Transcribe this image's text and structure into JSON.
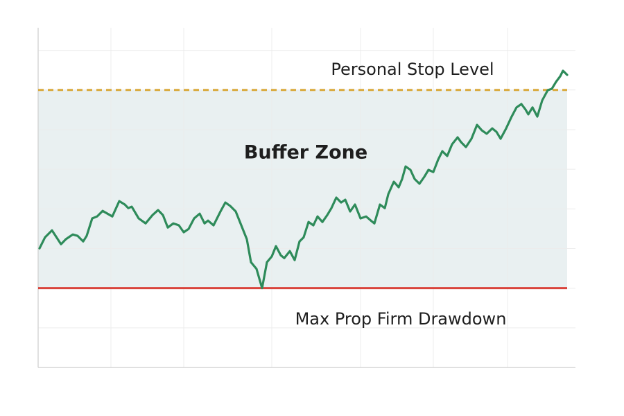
{
  "chart_data": {
    "type": "line",
    "x": [
      2,
      10,
      20,
      33,
      40,
      50,
      57,
      65,
      70,
      78,
      85,
      93,
      100,
      107,
      117,
      125,
      130,
      135,
      145,
      155,
      165,
      173,
      180,
      187,
      195,
      203,
      210,
      217,
      225,
      233,
      240,
      245,
      253,
      263,
      270,
      277,
      285,
      293,
      301,
      307,
      315,
      323,
      330,
      337,
      343,
      350,
      355,
      363,
      370,
      377,
      383,
      390,
      397,
      403,
      410,
      417,
      423,
      430,
      437,
      443,
      450,
      457,
      465,
      473,
      480,
      485,
      493,
      500,
      505,
      513,
      520,
      525,
      530,
      537,
      543,
      550,
      557,
      563,
      570,
      577,
      583,
      590,
      597,
      605,
      610,
      617,
      625,
      633,
      640,
      647,
      655,
      661,
      667,
      675,
      683,
      690,
      697,
      703,
      707,
      713,
      720,
      727,
      735,
      741,
      747,
      753,
      757,
      763
    ],
    "series": [
      {
        "color": "#2e8b5a",
        "values": [
          20.1,
          25.7,
          29.2,
          22.2,
          24.7,
          27.1,
          26.4,
          23.6,
          26.4,
          35.2,
          36.2,
          39.0,
          37.6,
          36.2,
          43.9,
          42.2,
          40.4,
          41.1,
          35.2,
          32.7,
          36.9,
          39.4,
          36.9,
          30.6,
          32.7,
          31.7,
          28.2,
          29.9,
          35.2,
          37.6,
          32.7,
          34.1,
          31.7,
          38.7,
          43.2,
          41.5,
          38.7,
          31.7,
          24.7,
          13.1,
          9.7,
          0,
          13.1,
          16.0,
          21.2,
          16.6,
          15.2,
          18.7,
          14.2,
          23.6,
          25.7,
          33.4,
          31.7,
          36.2,
          33.4,
          36.9,
          40.4,
          45.7,
          43.2,
          44.6,
          38.7,
          42.2,
          35.2,
          36.2,
          34.1,
          32.7,
          42.2,
          40.4,
          47.4,
          53.7,
          50.9,
          55.1,
          61.4,
          59.7,
          55.1,
          52.7,
          56.2,
          59.7,
          58.6,
          64.9,
          69.1,
          66.7,
          72.6,
          76.1,
          73.7,
          71.2,
          75.4,
          82.4,
          79.6,
          77.9,
          80.6,
          78.9,
          75.4,
          80.6,
          86.6,
          91.2,
          92.9,
          90.1,
          87.7,
          91.2,
          86.6,
          94.7,
          99.9,
          100.6,
          104.1,
          106.9,
          109.7,
          107.6
        ]
      }
    ],
    "xlim": [
      0,
      775
    ],
    "xticks": [
      105,
      210,
      337,
      465,
      570,
      677
    ],
    "ylim": [
      -40,
      130
    ],
    "yticks": [
      -20,
      0,
      20,
      40,
      60,
      80,
      100,
      120
    ],
    "grid": true,
    "shaded_band": {
      "label": "Buffer Zone",
      "from": 0,
      "to": 100,
      "color": "#e9f0f1"
    },
    "reference_lines": [
      {
        "label": "Personal Stop Level",
        "value": 100,
        "color": "#d9a93c",
        "dashed": true
      },
      {
        "label": "Max Prop Firm Drawdown",
        "value": 0,
        "color": "#d9433b",
        "dashed": false
      }
    ]
  }
}
